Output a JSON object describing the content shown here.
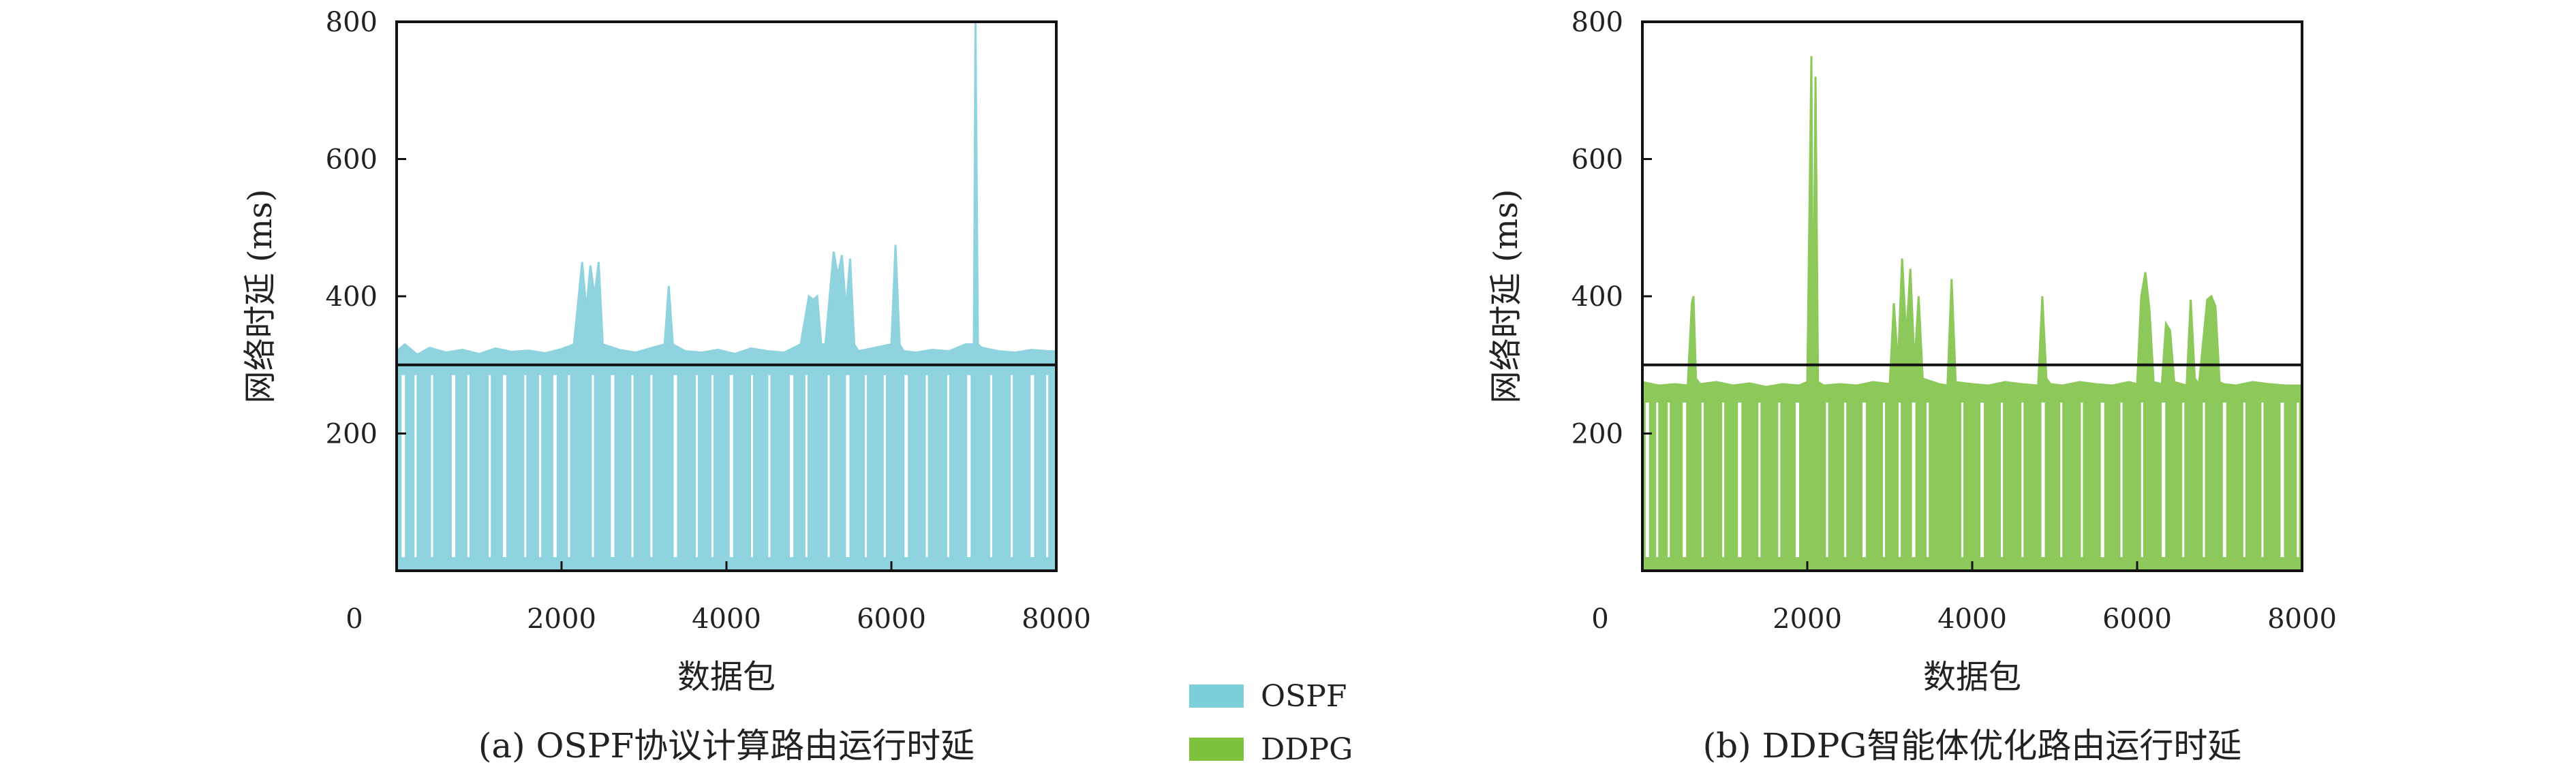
{
  "chart_data": [
    {
      "type": "area",
      "caption": "(a) OSPF协议计算路由运行时延",
      "xlabel": "数据包",
      "ylabel": "网络时延 (ms)",
      "xlim": [
        0,
        8000
      ],
      "ylim": [
        0,
        800
      ],
      "x_ticks": [
        2000,
        4000,
        6000,
        8000
      ],
      "y_ticks": [
        200,
        400,
        600,
        800
      ],
      "origin_label": "0",
      "reference_line": 300,
      "series": [
        {
          "name": "OSPF",
          "color": "#8fd3df",
          "baseline": 305,
          "x": [
            0,
            100,
            250,
            400,
            600,
            800,
            1000,
            1200,
            1400,
            1600,
            1800,
            2000,
            2150,
            2200,
            2250,
            2300,
            2350,
            2400,
            2450,
            2500,
            2700,
            2900,
            3100,
            3250,
            3300,
            3350,
            3500,
            3700,
            3900,
            4100,
            4300,
            4500,
            4700,
            4900,
            5000,
            5050,
            5100,
            5150,
            5200,
            5300,
            5350,
            5400,
            5450,
            5500,
            5550,
            5600,
            5800,
            6000,
            6050,
            6100,
            6150,
            6300,
            6500,
            6700,
            6900,
            7000,
            7020,
            7050,
            7100,
            7300,
            7500,
            7700,
            7900,
            8000
          ],
          "values": [
            320,
            330,
            315,
            325,
            318,
            322,
            316,
            324,
            319,
            321,
            317,
            323,
            330,
            390,
            450,
            380,
            445,
            400,
            450,
            330,
            322,
            318,
            325,
            330,
            415,
            330,
            320,
            318,
            322,
            316,
            324,
            320,
            318,
            330,
            400,
            395,
            400,
            330,
            330,
            465,
            430,
            460,
            380,
            455,
            330,
            320,
            325,
            330,
            475,
            330,
            320,
            318,
            322,
            320,
            330,
            330,
            800,
            330,
            325,
            320,
            318,
            322,
            320,
            320
          ]
        }
      ],
      "dips_x": [
        80,
        230,
        430,
        690,
        870,
        1130,
        1310,
        1560,
        1740,
        1920,
        2090,
        2380,
        2620,
        2860,
        3090,
        3380,
        3640,
        3830,
        4060,
        4310,
        4520,
        4790,
        4970,
        5240,
        5470,
        5690,
        5920,
        6180,
        6430,
        6690,
        6940,
        7210,
        7460,
        7710,
        7890
      ]
    },
    {
      "type": "area",
      "caption": "(b) DDPG智能体优化路由运行时延",
      "xlabel": "数据包",
      "ylabel": "网络时延 (ms)",
      "xlim": [
        0,
        8000
      ],
      "ylim": [
        0,
        800
      ],
      "x_ticks": [
        2000,
        4000,
        6000,
        8000
      ],
      "y_ticks": [
        200,
        400,
        600,
        800
      ],
      "origin_label": "0",
      "reference_line": 300,
      "series": [
        {
          "name": "DDPG",
          "color": "#8cc85a",
          "baseline": 265,
          "x": [
            0,
            200,
            400,
            550,
            600,
            620,
            650,
            700,
            900,
            1100,
            1300,
            1500,
            1700,
            1900,
            2000,
            2050,
            2070,
            2100,
            2130,
            2200,
            2400,
            2600,
            2800,
            3000,
            3050,
            3100,
            3150,
            3200,
            3250,
            3300,
            3350,
            3400,
            3600,
            3700,
            3750,
            3800,
            4000,
            4200,
            4400,
            4600,
            4800,
            4850,
            4900,
            4950,
            5100,
            5300,
            5500,
            5700,
            5900,
            6000,
            6050,
            6100,
            6150,
            6200,
            6300,
            6350,
            6400,
            6450,
            6600,
            6650,
            6700,
            6750,
            6850,
            6900,
            6950,
            7000,
            7050,
            7200,
            7400,
            7600,
            7800,
            8000
          ],
          "values": [
            275,
            270,
            272,
            270,
            390,
            400,
            280,
            272,
            275,
            270,
            273,
            268,
            272,
            270,
            275,
            750,
            280,
            720,
            275,
            270,
            272,
            270,
            275,
            272,
            390,
            300,
            455,
            340,
            440,
            300,
            400,
            280,
            272,
            270,
            425,
            275,
            272,
            270,
            275,
            272,
            270,
            400,
            280,
            272,
            270,
            275,
            272,
            270,
            275,
            272,
            400,
            435,
            380,
            275,
            272,
            360,
            350,
            275,
            270,
            395,
            280,
            272,
            395,
            400,
            385,
            275,
            272,
            270,
            275,
            272,
            270,
            270
          ]
        }
      ],
      "dips_x": [
        60,
        180,
        320,
        510,
        730,
        980,
        1180,
        1420,
        1660,
        1880,
        2240,
        2460,
        2690,
        2930,
        3120,
        3290,
        3460,
        3880,
        4120,
        4360,
        4610,
        4860,
        5080,
        5330,
        5580,
        5810,
        6060,
        6320,
        6560,
        6810,
        7060,
        7300,
        7520,
        7760,
        7950
      ]
    }
  ]
}
